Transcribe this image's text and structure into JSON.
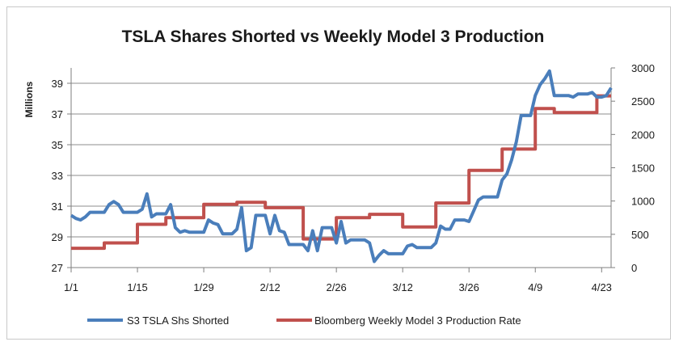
{
  "chart_data": {
    "type": "line",
    "title": "TSLA Shares Shorted vs Weekly Model 3 Production",
    "xlabel": "",
    "ylabel": "Millions",
    "ylim_left": [
      27,
      40
    ],
    "ylim_right": [
      0,
      3000
    ],
    "x_start": "1/1",
    "x_end": "4/25",
    "x_ticks": [
      "1/1",
      "1/15",
      "1/29",
      "2/12",
      "2/26",
      "3/12",
      "3/26",
      "4/9",
      "4/23"
    ],
    "y_ticks_left": [
      "27",
      "29",
      "31",
      "33",
      "35",
      "37",
      "39"
    ],
    "y_ticks_right": [
      "0",
      "500",
      "1000",
      "1500",
      "2000",
      "2500",
      "3000"
    ],
    "grid": true,
    "legend_position": "bottom",
    "series": [
      {
        "name": "S3 TSLA Shs Shorted",
        "axis": "left",
        "color": "#4a7ebb",
        "x": [
          "1/1",
          "1/2",
          "1/3",
          "1/4",
          "1/5",
          "1/6",
          "1/7",
          "1/8",
          "1/9",
          "1/10",
          "1/11",
          "1/12",
          "1/13",
          "1/14",
          "1/15",
          "1/16",
          "1/17",
          "1/18",
          "1/19",
          "1/20",
          "1/21",
          "1/22",
          "1/23",
          "1/24",
          "1/25",
          "1/26",
          "1/27",
          "1/28",
          "1/29",
          "1/30",
          "1/31",
          "2/1",
          "2/2",
          "2/3",
          "2/4",
          "2/5",
          "2/6",
          "2/7",
          "2/8",
          "2/9",
          "2/10",
          "2/11",
          "2/12",
          "2/13",
          "2/14",
          "2/15",
          "2/16",
          "2/17",
          "2/18",
          "2/19",
          "2/20",
          "2/21",
          "2/22",
          "2/23",
          "2/24",
          "2/25",
          "2/26",
          "2/27",
          "2/28",
          "3/1",
          "3/2",
          "3/3",
          "3/4",
          "3/5",
          "3/6",
          "3/7",
          "3/8",
          "3/9",
          "3/10",
          "3/11",
          "3/12",
          "3/13",
          "3/14",
          "3/15",
          "3/16",
          "3/17",
          "3/18",
          "3/19",
          "3/20",
          "3/21",
          "3/22",
          "3/23",
          "3/24",
          "3/25",
          "3/26",
          "3/27",
          "3/28",
          "3/29",
          "3/30",
          "3/31",
          "4/1",
          "4/2",
          "4/3",
          "4/4",
          "4/5",
          "4/6",
          "4/7",
          "4/8",
          "4/9",
          "4/10",
          "4/11",
          "4/12",
          "4/13",
          "4/14",
          "4/15",
          "4/16",
          "4/17",
          "4/18",
          "4/19",
          "4/20",
          "4/21",
          "4/22",
          "4/23",
          "4/24",
          "4/25"
        ],
        "values": [
          30.4,
          30.2,
          30.1,
          30.3,
          30.6,
          30.6,
          30.6,
          30.6,
          31.1,
          31.3,
          31.1,
          30.6,
          30.6,
          30.6,
          30.6,
          30.8,
          31.8,
          30.3,
          30.5,
          30.5,
          30.5,
          31.1,
          29.6,
          29.3,
          29.4,
          29.3,
          29.3,
          29.3,
          29.3,
          30.1,
          29.9,
          29.8,
          29.2,
          29.2,
          29.2,
          29.5,
          30.9,
          28.1,
          28.3,
          30.4,
          30.4,
          30.4,
          29.2,
          30.4,
          29.4,
          29.3,
          28.5,
          28.5,
          28.5,
          28.5,
          28.1,
          29.4,
          28.1,
          29.6,
          29.6,
          29.6,
          28.6,
          30.0,
          28.6,
          28.8,
          28.8,
          28.8,
          28.8,
          28.6,
          27.4,
          27.8,
          28.1,
          27.9,
          27.9,
          27.9,
          27.9,
          28.4,
          28.5,
          28.3,
          28.3,
          28.3,
          28.3,
          28.6,
          29.7,
          29.5,
          29.5,
          30.1,
          30.1,
          30.1,
          30.0,
          30.7,
          31.4,
          31.6,
          31.6,
          31.6,
          31.6,
          32.7,
          33.1,
          34.0,
          35.2,
          36.9,
          36.9,
          36.9,
          38.2,
          38.9,
          39.3,
          39.8,
          38.2,
          38.2,
          38.2,
          38.2,
          38.1,
          38.3,
          38.3,
          38.3,
          38.4,
          38.1,
          38.1,
          38.2,
          38.7
        ]
      },
      {
        "name": "Bloomberg Weekly Model 3 Production Rate",
        "axis": "right",
        "color": "#c0504d",
        "steps": [
          {
            "x": "1/1",
            "value": 290
          },
          {
            "x": "1/8",
            "value": 370
          },
          {
            "x": "1/15",
            "value": 650
          },
          {
            "x": "1/21",
            "value": 750
          },
          {
            "x": "1/29",
            "value": 950
          },
          {
            "x": "2/5",
            "value": 980
          },
          {
            "x": "2/11",
            "value": 900
          },
          {
            "x": "2/19",
            "value": 430
          },
          {
            "x": "2/26",
            "value": 750
          },
          {
            "x": "3/5",
            "value": 800
          },
          {
            "x": "3/12",
            "value": 610
          },
          {
            "x": "3/19",
            "value": 970
          },
          {
            "x": "3/26",
            "value": 1460
          },
          {
            "x": "4/2",
            "value": 1780
          },
          {
            "x": "4/9",
            "value": 2390
          },
          {
            "x": "4/13",
            "value": 2330
          },
          {
            "x": "4/22",
            "value": 2580
          }
        ],
        "x_end": "4/25"
      }
    ]
  }
}
